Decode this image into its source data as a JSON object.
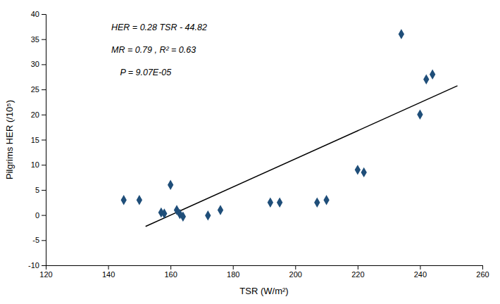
{
  "chart_data": {
    "type": "scatter",
    "xlabel": "TSR  (W/m²)",
    "ylabel": "Pilgrims HER (/10⁵)",
    "xlim": [
      120,
      260
    ],
    "ylim": [
      -10,
      40
    ],
    "xticks": [
      120,
      140,
      160,
      180,
      200,
      220,
      240,
      260
    ],
    "yticks": [
      -10,
      -5,
      0,
      5,
      10,
      15,
      20,
      25,
      30,
      35,
      40
    ],
    "grid": false,
    "annotations": [
      "HER = 0.28 TSR - 44.82",
      "MR = 0.79 , R² = 0.63",
      "P = 9.07E-05"
    ],
    "series": [
      {
        "type": "scatter",
        "color": "#1F4E79",
        "marker": "diamond",
        "x": [
          145,
          150,
          157,
          158,
          160,
          162,
          163,
          164,
          172,
          176,
          192,
          195,
          207,
          210,
          220,
          222,
          234,
          240,
          242,
          244
        ],
        "values": [
          3,
          3,
          0.5,
          0.3,
          6,
          1,
          0.2,
          -0.3,
          -0.1,
          1,
          2.5,
          2.5,
          2.5,
          3,
          9,
          8.5,
          36,
          20,
          27,
          28
        ]
      },
      {
        "type": "line",
        "color": "#000000",
        "line_style": "solid",
        "x": [
          152,
          252
        ],
        "values": [
          -2.26,
          25.74
        ]
      }
    ]
  }
}
